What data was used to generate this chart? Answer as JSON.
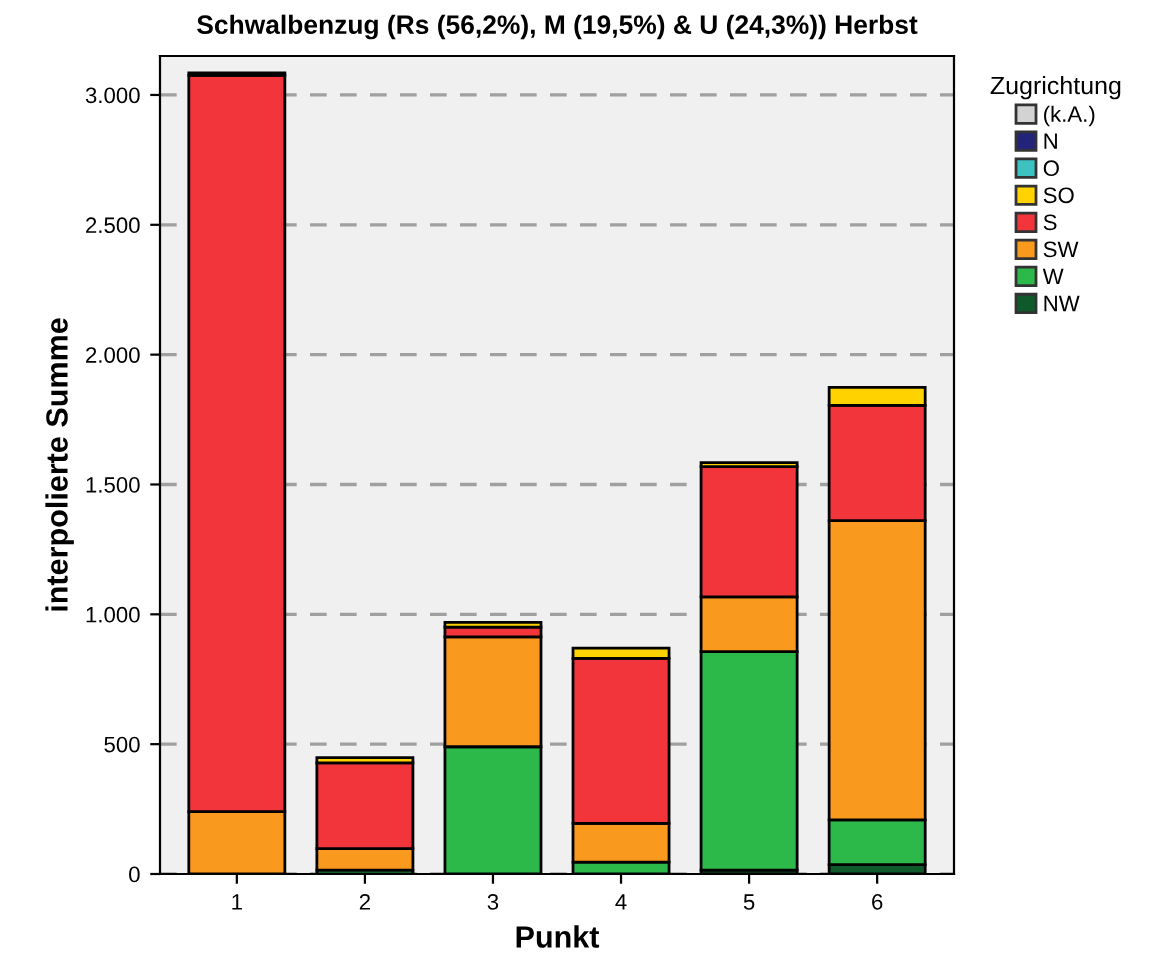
{
  "chart_data": {
    "type": "bar",
    "stacked": true,
    "title": "Schwalbenzug (Rs (56,2%), M (19,5%) & U (24,3%)) Herbst",
    "xlabel": "Punkt",
    "ylabel": "interpolierte Summe",
    "legend_title": "Zugrichtung",
    "legend": "right",
    "grid": "y",
    "categories": [
      "1",
      "2",
      "3",
      "4",
      "5",
      "6"
    ],
    "ylim": [
      0,
      3150
    ],
    "yticks": [
      {
        "value": 0,
        "label": "0"
      },
      {
        "value": 500,
        "label": "500"
      },
      {
        "value": 1000,
        "label": "1.000"
      },
      {
        "value": 1500,
        "label": "1.500"
      },
      {
        "value": 2000,
        "label": "2.000"
      },
      {
        "value": 2500,
        "label": "2.500"
      },
      {
        "value": 3000,
        "label": "3.000"
      }
    ],
    "series": [
      {
        "name": "NW",
        "color": "#0f5a2a",
        "values": [
          0,
          0,
          0,
          0,
          15,
          36
        ]
      },
      {
        "name": "W",
        "color": "#2db84a",
        "values": [
          0,
          15,
          490,
          46,
          841,
          172
        ]
      },
      {
        "name": "SW",
        "color": "#f99a1f",
        "values": [
          240,
          83,
          423,
          149,
          211,
          1153
        ]
      },
      {
        "name": "S",
        "color": "#f2353b",
        "values": [
          2835,
          330,
          38,
          635,
          502,
          444
        ]
      },
      {
        "name": "SO",
        "color": "#ffd200",
        "values": [
          10,
          20,
          18,
          40,
          15,
          69
        ]
      },
      {
        "name": "O",
        "color": "#3ec1c1",
        "values": [
          0,
          0,
          0,
          0,
          0,
          0
        ]
      },
      {
        "name": "N",
        "color": "#23237a",
        "values": [
          0,
          0,
          0,
          0,
          0,
          0
        ]
      },
      {
        "name": "(k.A.)",
        "color": "#d3d3d3",
        "values": [
          0,
          0,
          0,
          0,
          0,
          0
        ]
      }
    ]
  }
}
